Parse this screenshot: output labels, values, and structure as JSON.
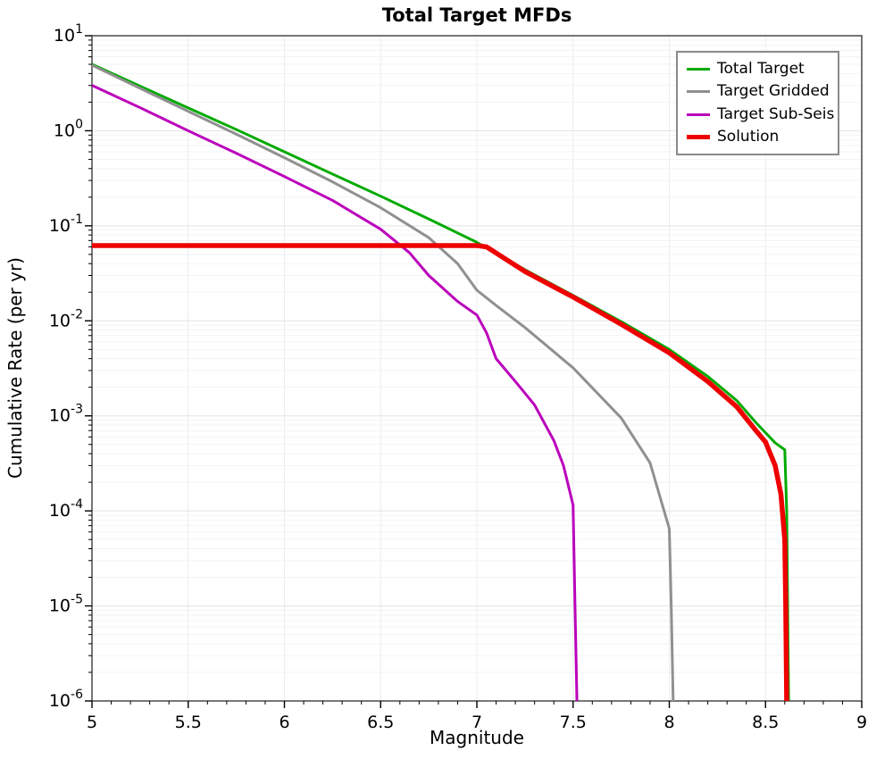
{
  "chart_data": {
    "type": "line",
    "title": "Total Target MFDs",
    "xlabel": "Magnitude",
    "ylabel": "Cumulative Rate (per yr)",
    "xlim": [
      5,
      9
    ],
    "x_tick_labels": [
      "5",
      "5.5",
      "6",
      "6.5",
      "7",
      "7.5",
      "8",
      "8.5",
      "9"
    ],
    "x_tick_values": [
      5,
      5.5,
      6,
      6.5,
      7,
      7.5,
      8,
      8.5,
      9
    ],
    "x_minor_tick_step": 0.1,
    "y_scale": "log",
    "y_top_exponent": 1,
    "y_bottom_exponent": -6,
    "y_tick_exponents": [
      1,
      0,
      -1,
      -2,
      -3,
      -4,
      -5,
      -6
    ],
    "grid": true,
    "legend_position": "top-right",
    "style": {
      "border_color": "#555555",
      "tick_color": "#000000",
      "major_grid_color": "#e2e2e2",
      "minor_grid_color": "#f3f3f3",
      "vertical_grid_color": "#ececec",
      "background_color": "#ffffff"
    },
    "series": [
      {
        "name": "Total Target",
        "color": "#00AA00",
        "width": 3,
        "points": [
          [
            5.0,
            5.0
          ],
          [
            5.25,
            2.95
          ],
          [
            5.5,
            1.74
          ],
          [
            5.75,
            1.03
          ],
          [
            6.0,
            0.6
          ],
          [
            6.25,
            0.35
          ],
          [
            6.5,
            0.205
          ],
          [
            6.75,
            0.118
          ],
          [
            7.0,
            0.067
          ],
          [
            7.25,
            0.0345
          ],
          [
            7.5,
            0.0185
          ],
          [
            7.75,
            0.0098
          ],
          [
            8.0,
            0.005
          ],
          [
            8.2,
            0.0026
          ],
          [
            8.35,
            0.00145
          ],
          [
            8.45,
            0.00085
          ],
          [
            8.55,
            0.00052
          ],
          [
            8.6,
            0.00044
          ],
          [
            8.61,
            0.0001
          ],
          [
            8.615,
            1e-05
          ],
          [
            8.62,
            1e-06
          ]
        ]
      },
      {
        "name": "Target Gridded",
        "color": "#909090",
        "width": 3,
        "points": [
          [
            5.0,
            4.9
          ],
          [
            5.25,
            2.8
          ],
          [
            5.5,
            1.6
          ],
          [
            5.75,
            0.92
          ],
          [
            6.0,
            0.52
          ],
          [
            6.25,
            0.29
          ],
          [
            6.5,
            0.155
          ],
          [
            6.75,
            0.075
          ],
          [
            6.9,
            0.04
          ],
          [
            7.0,
            0.021
          ],
          [
            7.1,
            0.0145
          ],
          [
            7.25,
            0.0085
          ],
          [
            7.5,
            0.0032
          ],
          [
            7.75,
            0.00095
          ],
          [
            7.9,
            0.00032
          ],
          [
            8.0,
            6.5e-05
          ],
          [
            8.01,
            1e-05
          ],
          [
            8.02,
            1e-06
          ]
        ]
      },
      {
        "name": "Target Sub-Seis",
        "color": "#BB00BB",
        "width": 3,
        "points": [
          [
            5.0,
            3.0
          ],
          [
            5.25,
            1.75
          ],
          [
            5.5,
            1.0
          ],
          [
            5.75,
            0.58
          ],
          [
            6.0,
            0.33
          ],
          [
            6.25,
            0.185
          ],
          [
            6.5,
            0.092
          ],
          [
            6.65,
            0.052
          ],
          [
            6.75,
            0.03
          ],
          [
            6.9,
            0.016
          ],
          [
            7.0,
            0.0115
          ],
          [
            7.05,
            0.0075
          ],
          [
            7.1,
            0.004
          ],
          [
            7.2,
            0.0023
          ],
          [
            7.3,
            0.0013
          ],
          [
            7.4,
            0.00055
          ],
          [
            7.45,
            0.0003
          ],
          [
            7.5,
            0.000115
          ],
          [
            7.51,
            1e-05
          ],
          [
            7.52,
            1e-06
          ]
        ]
      },
      {
        "name": "Solution",
        "color": "#EE0000",
        "width": 5.5,
        "points": [
          [
            5.0,
            0.062
          ],
          [
            7.0,
            0.062
          ],
          [
            7.05,
            0.06
          ],
          [
            7.25,
            0.033
          ],
          [
            7.5,
            0.0178
          ],
          [
            7.75,
            0.0092
          ],
          [
            8.0,
            0.0046
          ],
          [
            8.2,
            0.0023
          ],
          [
            8.35,
            0.00125
          ],
          [
            8.45,
            0.0007
          ],
          [
            8.5,
            0.00053
          ],
          [
            8.55,
            0.0003
          ],
          [
            8.58,
            0.00015
          ],
          [
            8.6,
            5e-05
          ],
          [
            8.605,
            1e-05
          ],
          [
            8.61,
            1e-06
          ]
        ]
      }
    ]
  }
}
